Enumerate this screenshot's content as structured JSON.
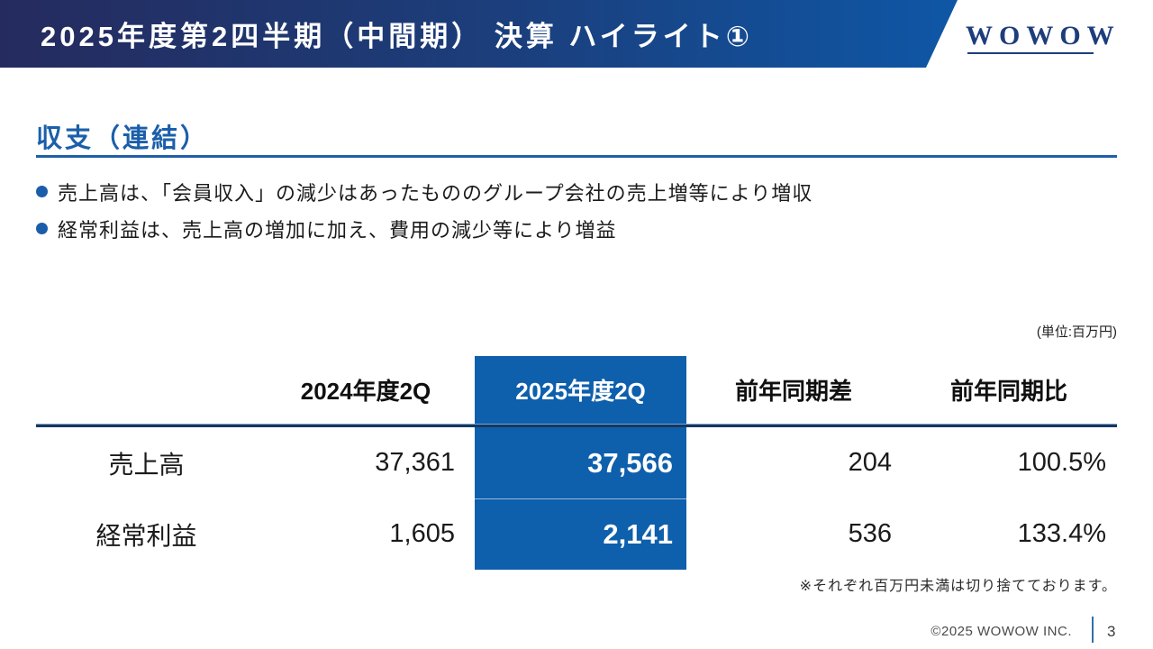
{
  "header": {
    "title": "2025年度第2四半期（中間期） 決算 ハイライト①",
    "logo_text": "WOWOW"
  },
  "section": {
    "title": "収支（連結）",
    "bullets": [
      "売上高は、「会員収入」の減少はあったもののグループ会社の売上増等により増収",
      "経常利益は、売上高の増加に加え、費用の減少等により増益"
    ]
  },
  "table": {
    "unit_note": "(単位:百万円)",
    "columns": [
      "",
      "2024年度2Q",
      "2025年度2Q",
      "前年同期差",
      "前年同期比"
    ],
    "highlighted_column": "2025年度2Q",
    "rows": [
      {
        "label": "売上高",
        "fy2024": "37,361",
        "fy2025": "37,566",
        "diff": "204",
        "ratio": "100.5%"
      },
      {
        "label": "経常利益",
        "fy2024": "1,605",
        "fy2025": "2,141",
        "diff": "536",
        "ratio": "133.4%"
      }
    ],
    "footnote": "※それぞれ百万円未満は切り捨てております。"
  },
  "footer": {
    "copyright": "©2025 WOWOW INC.",
    "page_number": "3"
  },
  "colors": {
    "banner_gradient_left": "#252b5e",
    "banner_gradient_right": "#0e58a8",
    "highlight_blue": "#0e5fac",
    "section_title_blue": "#1b5faa",
    "rule_navy": "#17375e",
    "logo_navy": "#1d3d7b"
  },
  "chart_data": {
    "type": "table",
    "title": "収支（連結）",
    "unit": "百万円",
    "columns": [
      "",
      "2024年度2Q",
      "2025年度2Q",
      "前年同期差",
      "前年同期比"
    ],
    "rows": [
      [
        "売上高",
        37361,
        37566,
        204,
        "100.5%"
      ],
      [
        "経常利益",
        1605,
        2141,
        536,
        "133.4%"
      ]
    ]
  }
}
